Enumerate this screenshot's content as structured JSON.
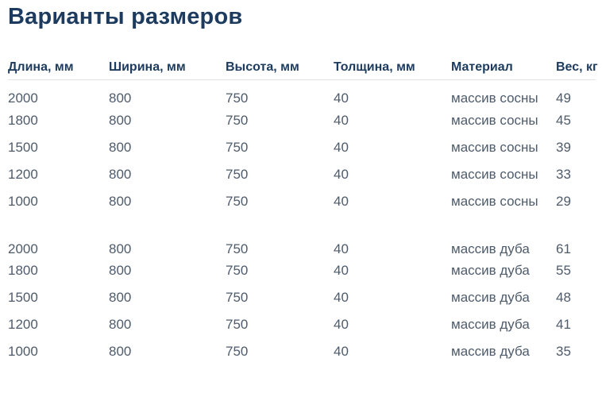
{
  "page": {
    "title": "Варианты размеров"
  },
  "table": {
    "columns": [
      {
        "key": "length",
        "label": "Длина, мм"
      },
      {
        "key": "width",
        "label": "Ширина, мм"
      },
      {
        "key": "height",
        "label": "Высота, мм"
      },
      {
        "key": "thickness",
        "label": "Толщина, мм"
      },
      {
        "key": "material",
        "label": "Материал"
      },
      {
        "key": "weight",
        "label": "Вес, кг"
      }
    ],
    "groups": [
      {
        "name": "pine",
        "rows": [
          [
            "2000",
            "800",
            "750",
            "40",
            "массив сосны",
            "49"
          ],
          [
            "1800",
            "800",
            "750",
            "40",
            "массив сосны",
            "45"
          ],
          [
            "1500",
            "800",
            "750",
            "40",
            "массив сосны",
            "39"
          ],
          [
            "1200",
            "800",
            "750",
            "40",
            "массив сосны",
            "33"
          ],
          [
            "1000",
            "800",
            "750",
            "40",
            "массив сосны",
            "29"
          ]
        ]
      },
      {
        "name": "oak",
        "rows": [
          [
            "2000",
            "800",
            "750",
            "40",
            "массив дуба",
            "61"
          ],
          [
            "1800",
            "800",
            "750",
            "40",
            "массив дуба",
            "55"
          ],
          [
            "1500",
            "800",
            "750",
            "40",
            "массив дуба",
            "48"
          ],
          [
            "1200",
            "800",
            "750",
            "40",
            "массив дуба",
            "41"
          ],
          [
            "1000",
            "800",
            "750",
            "40",
            "массив дуба",
            "35"
          ]
        ]
      }
    ]
  },
  "colors": {
    "heading": "#1c3b5e",
    "body_text": "#4e5b6b",
    "divider": "#e3e3e3",
    "page_bg": "#ffffff"
  }
}
